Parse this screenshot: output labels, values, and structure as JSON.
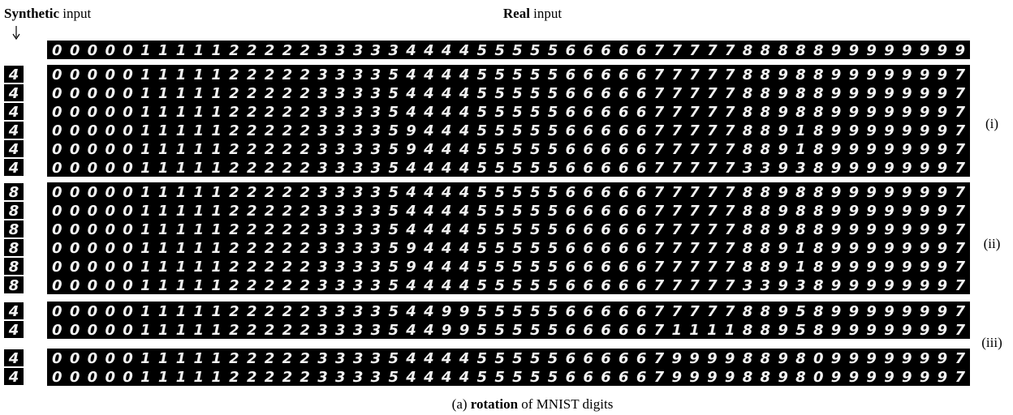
{
  "header": {
    "synthetic_bold": "Synthetic",
    "synthetic_rest": "input",
    "real_bold": "Real",
    "real_rest": "input"
  },
  "real_input": "0000011111222223333344445555566666777778888899999999",
  "blocks": [
    {
      "synthetic": [
        "4",
        "4",
        "4",
        "4",
        "4",
        "4"
      ],
      "rows": [
        "0000011111222223333544445555566666777778898899999997",
        "0000011111222223333544445555566666777778898899999997",
        "0000011111222223333544445555566666777778898899999997",
        "0000011111222223333594445555566666777778891899999997",
        "0000011111222223333594445555566666777778891899999997",
        "0000011111222223333544445555566666777773393899999997"
      ]
    },
    {
      "synthetic": [
        "8",
        "8",
        "8",
        "8",
        "8",
        "8"
      ],
      "rows": [
        "0000011111222223333544445555566666777778898899999997",
        "0000011111222223333544445555566666777778898899999997",
        "0000011111222223333544445555566666777778898899999997",
        "0000011111222223333594445555566666777778891899999997",
        "0000011111222223333594445555566666777778891899999997",
        "0000011111222223333544445555566666777773393899999997"
      ]
    },
    {
      "synthetic": [
        "4",
        "4"
      ],
      "rows": [
        "0000011111222223333544995555566666777778895899999997",
        "0000011111222223333544995555566666711118895899999997"
      ]
    },
    {
      "synthetic": [
        "4",
        "4"
      ],
      "rows": [
        "0000011111222223333544445555566666799998898099999997",
        "0000011111222223333544445555566666799998898099999997"
      ]
    }
  ],
  "labels": [
    "(i)",
    "(ii)",
    "(iii)"
  ],
  "caption": {
    "prefix": "(a)",
    "bold": "rotation",
    "rest": "of MNIST digits"
  }
}
